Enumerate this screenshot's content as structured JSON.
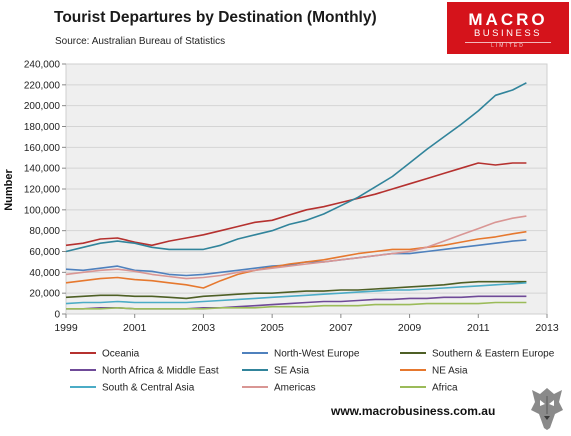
{
  "header": {
    "title": "Tourist Departures by Destination (Monthly)",
    "source": "Source: Australian Bureau of Statistics"
  },
  "logo": {
    "line1": "MACRO",
    "line2": "BUSINESS",
    "line3": "LIMITED"
  },
  "footer": {
    "url": "www.macrobusiness.com.au"
  },
  "chart_data": {
    "type": "line",
    "title": "Tourist Departures by Destination (Monthly)",
    "ylabel": "Number",
    "xlabel": "",
    "xlim": [
      1999,
      2013
    ],
    "ylim": [
      0,
      240000
    ],
    "yticks": [
      0,
      20000,
      40000,
      60000,
      80000,
      100000,
      120000,
      140000,
      160000,
      180000,
      200000,
      220000,
      240000
    ],
    "ytick_labels": [
      "0",
      "20,000",
      "40,000",
      "60,000",
      "80,000",
      "100,000",
      "120,000",
      "140,000",
      "160,000",
      "180,000",
      "200,000",
      "220,000",
      "240,000"
    ],
    "xticks": [
      1999,
      2001,
      2003,
      2005,
      2007,
      2009,
      2011,
      2013
    ],
    "xtick_labels": [
      "1999",
      "2001",
      "2003",
      "2005",
      "2007",
      "2009",
      "2011",
      "2013"
    ],
    "grid": true,
    "legend": "bottom",
    "series": [
      {
        "name": "Oceania",
        "color": "#b5312f",
        "points": [
          [
            1999.0,
            66000
          ],
          [
            1999.5,
            68000
          ],
          [
            2000.0,
            72000
          ],
          [
            2000.5,
            73000
          ],
          [
            2001.0,
            69000
          ],
          [
            2001.5,
            66000
          ],
          [
            2002.0,
            70000
          ],
          [
            2002.5,
            73000
          ],
          [
            2003.0,
            76000
          ],
          [
            2003.5,
            80000
          ],
          [
            2004.0,
            84000
          ],
          [
            2004.5,
            88000
          ],
          [
            2005.0,
            90000
          ],
          [
            2005.5,
            95000
          ],
          [
            2006.0,
            100000
          ],
          [
            2006.5,
            103000
          ],
          [
            2007.0,
            107000
          ],
          [
            2007.5,
            111000
          ],
          [
            2008.0,
            115000
          ],
          [
            2008.5,
            120000
          ],
          [
            2009.0,
            125000
          ],
          [
            2009.5,
            130000
          ],
          [
            2010.0,
            135000
          ],
          [
            2010.5,
            140000
          ],
          [
            2011.0,
            145000
          ],
          [
            2011.5,
            143000
          ],
          [
            2012.0,
            145000
          ],
          [
            2012.4,
            145000
          ]
        ]
      },
      {
        "name": "North-West Europe",
        "color": "#4f81bd",
        "points": [
          [
            1999.0,
            43000
          ],
          [
            1999.5,
            42000
          ],
          [
            2000.0,
            44000
          ],
          [
            2000.5,
            46000
          ],
          [
            2001.0,
            42000
          ],
          [
            2001.5,
            41000
          ],
          [
            2002.0,
            38000
          ],
          [
            2002.5,
            37000
          ],
          [
            2003.0,
            38000
          ],
          [
            2003.5,
            40000
          ],
          [
            2004.0,
            42000
          ],
          [
            2004.5,
            44000
          ],
          [
            2005.0,
            46000
          ],
          [
            2005.5,
            47000
          ],
          [
            2006.0,
            50000
          ],
          [
            2006.5,
            50000
          ],
          [
            2007.0,
            52000
          ],
          [
            2007.5,
            54000
          ],
          [
            2008.0,
            56000
          ],
          [
            2008.5,
            58000
          ],
          [
            2009.0,
            58000
          ],
          [
            2009.5,
            60000
          ],
          [
            2010.0,
            62000
          ],
          [
            2010.5,
            64000
          ],
          [
            2011.0,
            66000
          ],
          [
            2011.5,
            68000
          ],
          [
            2012.0,
            70000
          ],
          [
            2012.4,
            71000
          ]
        ]
      },
      {
        "name": "Southern & Eastern Europe",
        "color": "#4e5f25",
        "points": [
          [
            1999.0,
            16000
          ],
          [
            1999.5,
            17000
          ],
          [
            2000.0,
            18000
          ],
          [
            2000.5,
            18000
          ],
          [
            2001.0,
            17000
          ],
          [
            2001.5,
            17000
          ],
          [
            2002.0,
            16000
          ],
          [
            2002.5,
            15000
          ],
          [
            2003.0,
            17000
          ],
          [
            2003.5,
            18000
          ],
          [
            2004.0,
            19000
          ],
          [
            2004.5,
            20000
          ],
          [
            2005.0,
            20000
          ],
          [
            2005.5,
            21000
          ],
          [
            2006.0,
            22000
          ],
          [
            2006.5,
            22000
          ],
          [
            2007.0,
            23000
          ],
          [
            2007.5,
            23000
          ],
          [
            2008.0,
            24000
          ],
          [
            2008.5,
            25000
          ],
          [
            2009.0,
            26000
          ],
          [
            2009.5,
            27000
          ],
          [
            2010.0,
            28000
          ],
          [
            2010.5,
            30000
          ],
          [
            2011.0,
            31000
          ],
          [
            2011.5,
            31000
          ],
          [
            2012.0,
            31000
          ],
          [
            2012.4,
            31000
          ]
        ]
      },
      {
        "name": "North Africa & Middle East",
        "color": "#6f4a98",
        "points": [
          [
            1999.0,
            5000
          ],
          [
            1999.5,
            5000
          ],
          [
            2000.0,
            6000
          ],
          [
            2000.5,
            6000
          ],
          [
            2001.0,
            5000
          ],
          [
            2001.5,
            5000
          ],
          [
            2002.0,
            5000
          ],
          [
            2002.5,
            5000
          ],
          [
            2003.0,
            6000
          ],
          [
            2003.5,
            6000
          ],
          [
            2004.0,
            7000
          ],
          [
            2004.5,
            8000
          ],
          [
            2005.0,
            9000
          ],
          [
            2005.5,
            10000
          ],
          [
            2006.0,
            11000
          ],
          [
            2006.5,
            12000
          ],
          [
            2007.0,
            12000
          ],
          [
            2007.5,
            13000
          ],
          [
            2008.0,
            14000
          ],
          [
            2008.5,
            14000
          ],
          [
            2009.0,
            15000
          ],
          [
            2009.5,
            15000
          ],
          [
            2010.0,
            16000
          ],
          [
            2010.5,
            16000
          ],
          [
            2011.0,
            17000
          ],
          [
            2011.5,
            17000
          ],
          [
            2012.0,
            17000
          ],
          [
            2012.4,
            17000
          ]
        ]
      },
      {
        "name": "SE Asia",
        "color": "#31849b",
        "points": [
          [
            1999.0,
            60000
          ],
          [
            1999.5,
            64000
          ],
          [
            2000.0,
            68000
          ],
          [
            2000.5,
            70000
          ],
          [
            2001.0,
            68000
          ],
          [
            2001.5,
            64000
          ],
          [
            2002.0,
            62000
          ],
          [
            2002.5,
            62000
          ],
          [
            2003.0,
            62000
          ],
          [
            2003.5,
            66000
          ],
          [
            2004.0,
            72000
          ],
          [
            2004.5,
            76000
          ],
          [
            2005.0,
            80000
          ],
          [
            2005.5,
            86000
          ],
          [
            2006.0,
            90000
          ],
          [
            2006.5,
            96000
          ],
          [
            2007.0,
            104000
          ],
          [
            2007.5,
            112000
          ],
          [
            2008.0,
            122000
          ],
          [
            2008.5,
            132000
          ],
          [
            2009.0,
            145000
          ],
          [
            2009.5,
            158000
          ],
          [
            2010.0,
            170000
          ],
          [
            2010.5,
            182000
          ],
          [
            2011.0,
            195000
          ],
          [
            2011.5,
            210000
          ],
          [
            2012.0,
            215000
          ],
          [
            2012.4,
            222000
          ]
        ]
      },
      {
        "name": "NE Asia",
        "color": "#e6782e",
        "points": [
          [
            1999.0,
            30000
          ],
          [
            1999.5,
            32000
          ],
          [
            2000.0,
            34000
          ],
          [
            2000.5,
            35000
          ],
          [
            2001.0,
            33000
          ],
          [
            2001.5,
            32000
          ],
          [
            2002.0,
            30000
          ],
          [
            2002.5,
            28000
          ],
          [
            2003.0,
            25000
          ],
          [
            2003.5,
            32000
          ],
          [
            2004.0,
            38000
          ],
          [
            2004.5,
            42000
          ],
          [
            2005.0,
            45000
          ],
          [
            2005.5,
            48000
          ],
          [
            2006.0,
            50000
          ],
          [
            2006.5,
            52000
          ],
          [
            2007.0,
            55000
          ],
          [
            2007.5,
            58000
          ],
          [
            2008.0,
            60000
          ],
          [
            2008.5,
            62000
          ],
          [
            2009.0,
            62000
          ],
          [
            2009.5,
            64000
          ],
          [
            2010.0,
            66000
          ],
          [
            2010.5,
            69000
          ],
          [
            2011.0,
            72000
          ],
          [
            2011.5,
            74000
          ],
          [
            2012.0,
            77000
          ],
          [
            2012.4,
            79000
          ]
        ]
      },
      {
        "name": "South & Central Asia",
        "color": "#4bacc6",
        "points": [
          [
            1999.0,
            10000
          ],
          [
            1999.5,
            11000
          ],
          [
            2000.0,
            11000
          ],
          [
            2000.5,
            12000
          ],
          [
            2001.0,
            11000
          ],
          [
            2001.5,
            11000
          ],
          [
            2002.0,
            11000
          ],
          [
            2002.5,
            11000
          ],
          [
            2003.0,
            12000
          ],
          [
            2003.5,
            13000
          ],
          [
            2004.0,
            14000
          ],
          [
            2004.5,
            15000
          ],
          [
            2005.0,
            16000
          ],
          [
            2005.5,
            17000
          ],
          [
            2006.0,
            18000
          ],
          [
            2006.5,
            19000
          ],
          [
            2007.0,
            20000
          ],
          [
            2007.5,
            21000
          ],
          [
            2008.0,
            22000
          ],
          [
            2008.5,
            23000
          ],
          [
            2009.0,
            23000
          ],
          [
            2009.5,
            24000
          ],
          [
            2010.0,
            25000
          ],
          [
            2010.5,
            26000
          ],
          [
            2011.0,
            27000
          ],
          [
            2011.5,
            28000
          ],
          [
            2012.0,
            29000
          ],
          [
            2012.4,
            30000
          ]
        ]
      },
      {
        "name": "Americas",
        "color": "#d99694",
        "points": [
          [
            1999.0,
            38000
          ],
          [
            1999.5,
            40000
          ],
          [
            2000.0,
            42000
          ],
          [
            2000.5,
            43000
          ],
          [
            2001.0,
            41000
          ],
          [
            2001.5,
            38000
          ],
          [
            2002.0,
            36000
          ],
          [
            2002.5,
            34000
          ],
          [
            2003.0,
            35000
          ],
          [
            2003.5,
            37000
          ],
          [
            2004.0,
            40000
          ],
          [
            2004.5,
            42000
          ],
          [
            2005.0,
            44000
          ],
          [
            2005.5,
            46000
          ],
          [
            2006.0,
            48000
          ],
          [
            2006.5,
            50000
          ],
          [
            2007.0,
            52000
          ],
          [
            2007.5,
            54000
          ],
          [
            2008.0,
            56000
          ],
          [
            2008.5,
            58000
          ],
          [
            2009.0,
            60000
          ],
          [
            2009.5,
            64000
          ],
          [
            2010.0,
            70000
          ],
          [
            2010.5,
            76000
          ],
          [
            2011.0,
            82000
          ],
          [
            2011.5,
            88000
          ],
          [
            2012.0,
            92000
          ],
          [
            2012.4,
            94000
          ]
        ]
      },
      {
        "name": "Africa",
        "color": "#9bbb59",
        "points": [
          [
            1999.0,
            5000
          ],
          [
            1999.5,
            5000
          ],
          [
            2000.0,
            5000
          ],
          [
            2000.5,
            6000
          ],
          [
            2001.0,
            5000
          ],
          [
            2001.5,
            5000
          ],
          [
            2002.0,
            5000
          ],
          [
            2002.5,
            5000
          ],
          [
            2003.0,
            5000
          ],
          [
            2003.5,
            6000
          ],
          [
            2004.0,
            6000
          ],
          [
            2004.5,
            6000
          ],
          [
            2005.0,
            7000
          ],
          [
            2005.5,
            7000
          ],
          [
            2006.0,
            7000
          ],
          [
            2006.5,
            8000
          ],
          [
            2007.0,
            8000
          ],
          [
            2007.5,
            8000
          ],
          [
            2008.0,
            9000
          ],
          [
            2008.5,
            9000
          ],
          [
            2009.0,
            9000
          ],
          [
            2009.5,
            10000
          ],
          [
            2010.0,
            10000
          ],
          [
            2010.5,
            10000
          ],
          [
            2011.0,
            10000
          ],
          [
            2011.5,
            11000
          ],
          [
            2012.0,
            11000
          ],
          [
            2012.4,
            11000
          ]
        ]
      }
    ]
  }
}
